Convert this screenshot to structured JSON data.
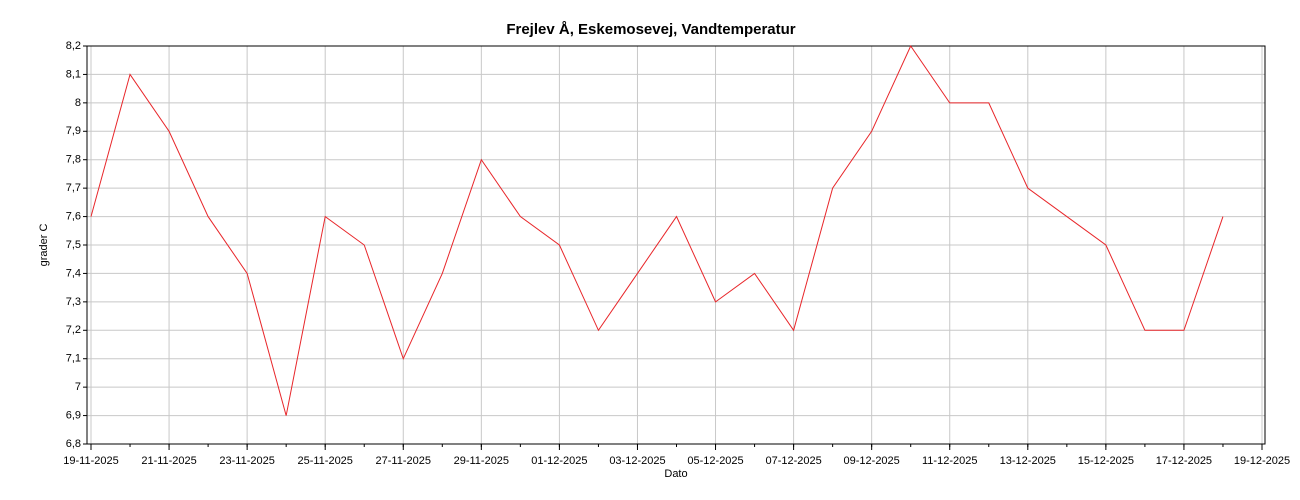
{
  "chart_data": {
    "type": "line",
    "title": "Frejlev Å, Eskemosevej, Vandtemperatur",
    "x_label": "Dato",
    "y_label": "grader C",
    "x": [
      "19-11-2025",
      "20-11-2025",
      "21-11-2025",
      "22-11-2025",
      "23-11-2025",
      "24-11-2025",
      "25-11-2025",
      "26-11-2025",
      "27-11-2025",
      "28-11-2025",
      "29-11-2025",
      "30-11-2025",
      "01-12-2025",
      "02-12-2025",
      "03-12-2025",
      "04-12-2025",
      "05-12-2025",
      "06-12-2025",
      "07-12-2025",
      "08-12-2025",
      "09-12-2025",
      "10-12-2025",
      "11-12-2025",
      "12-12-2025",
      "13-12-2025",
      "14-12-2025",
      "15-12-2025",
      "16-12-2025",
      "17-12-2025",
      "18-12-2025"
    ],
    "series": [
      {
        "name": "Vandtemperatur",
        "color": "#e8262a",
        "values": [
          7.6,
          8.1,
          7.9,
          7.6,
          7.4,
          6.9,
          7.6,
          7.5,
          7.1,
          7.4,
          7.8,
          7.6,
          7.5,
          7.2,
          7.4,
          7.6,
          7.3,
          7.4,
          7.2,
          7.7,
          7.9,
          8.2,
          8.0,
          8.0,
          7.7,
          7.6,
          7.5,
          7.2,
          7.2,
          7.6
        ]
      }
    ],
    "xlim": [
      "19-11-2025",
      "19-12-2025"
    ],
    "xticks": [
      "19-11-2025",
      "21-11-2025",
      "23-11-2025",
      "25-11-2025",
      "27-11-2025",
      "29-11-2025",
      "01-12-2025",
      "03-12-2025",
      "05-12-2025",
      "07-12-2025",
      "09-12-2025",
      "11-12-2025",
      "13-12-2025",
      "15-12-2025",
      "17-12-2025",
      "19-12-2025"
    ],
    "ylim": [
      6.8,
      8.2
    ],
    "yticks": [
      {
        "value": 6.8,
        "label": "6,8"
      },
      {
        "value": 6.9,
        "label": "6,9"
      },
      7,
      {
        "value": 7.1,
        "label": "7,1"
      },
      {
        "value": 7.2,
        "label": "7,2"
      },
      {
        "value": 7.3,
        "label": "7,3"
      },
      {
        "value": 7.4,
        "label": "7,4"
      },
      {
        "value": 7.5,
        "label": "7,5"
      },
      {
        "value": 7.6,
        "label": "7,6"
      },
      {
        "value": 7.7,
        "label": "7,7"
      },
      {
        "value": 7.8,
        "label": "7,8"
      },
      {
        "value": 7.9,
        "label": "7,9"
      },
      8,
      {
        "value": 8.1,
        "label": "8,1"
      },
      {
        "value": 8.2,
        "label": "8,2"
      }
    ],
    "grid": true
  }
}
